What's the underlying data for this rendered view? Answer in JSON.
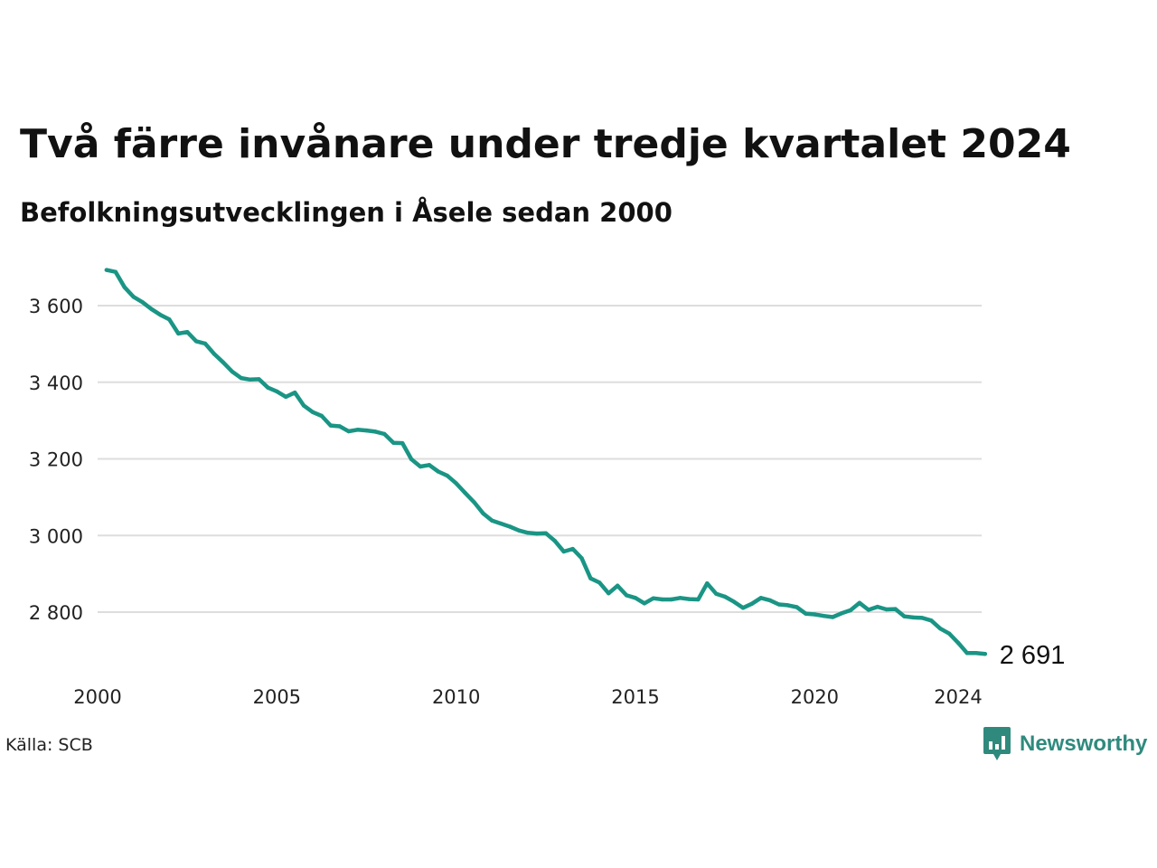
{
  "title": "Två färre invånare under tredje kvartalet 2024",
  "subtitle": "Befolkningsutvecklingen i Åsele sedan 2000",
  "source": "Källa: SCB",
  "brand": {
    "name": "Newsworthy",
    "icon": "newsworthy-logo-icon",
    "color": "#2f8a7d"
  },
  "colors": {
    "line": "#1a9585",
    "grid": "#dddddd"
  },
  "chart_data": {
    "type": "line",
    "title": "Två färre invånare under tredje kvartalet 2024",
    "subtitle": "Befolkningsutvecklingen i Åsele sedan 2000",
    "xlabel": "",
    "ylabel": "",
    "grid": true,
    "xlim": [
      2000.0,
      2024.75
    ],
    "ylim": [
      2660,
      3720
    ],
    "x_ticks": [
      {
        "value": 2000,
        "label": "2000"
      },
      {
        "value": 2005,
        "label": "2005"
      },
      {
        "value": 2010,
        "label": "2010"
      },
      {
        "value": 2015,
        "label": "2015"
      },
      {
        "value": 2020,
        "label": "2020"
      },
      {
        "value": 2024,
        "label": "2024"
      }
    ],
    "y_ticks": [
      {
        "value": 2800,
        "label": "2 800"
      },
      {
        "value": 3000,
        "label": "3 000"
      },
      {
        "value": 3200,
        "label": "3 200"
      },
      {
        "value": 3400,
        "label": "3 400"
      },
      {
        "value": 3600,
        "label": "3 600"
      }
    ],
    "end_label": "2 691",
    "series": [
      {
        "x": [
          2000.25,
          2000.5,
          2000.75,
          2001.0,
          2001.25,
          2001.5,
          2001.75,
          2002.0,
          2002.25,
          2002.5,
          2002.75,
          2003.0,
          2003.25,
          2003.5,
          2003.75,
          2004.0,
          2004.25,
          2004.5,
          2004.75,
          2005.0,
          2005.25,
          2005.5,
          2005.75,
          2006.0,
          2006.25,
          2006.5,
          2006.75,
          2007.0,
          2007.25,
          2007.5,
          2007.75,
          2008.0,
          2008.25,
          2008.5,
          2008.75,
          2009.0,
          2009.25,
          2009.5,
          2009.75,
          2010.0,
          2010.25,
          2010.5,
          2010.75,
          2011.0,
          2011.25,
          2011.5,
          2011.75,
          2012.0,
          2012.25,
          2012.5,
          2012.75,
          2013.0,
          2013.25,
          2013.5,
          2013.75,
          2014.0,
          2014.25,
          2014.5,
          2014.75,
          2015.0,
          2015.25,
          2015.5,
          2015.75,
          2016.0,
          2016.25,
          2016.5,
          2016.75,
          2017.0,
          2017.25,
          2017.5,
          2017.75,
          2018.0,
          2018.25,
          2018.5,
          2018.75,
          2019.0,
          2019.25,
          2019.5,
          2019.75,
          2020.0,
          2020.25,
          2020.5,
          2020.75,
          2021.0,
          2021.25,
          2021.5,
          2021.75,
          2022.0,
          2022.25,
          2022.5,
          2022.75,
          2023.0,
          2023.25,
          2023.5,
          2023.75,
          2024.0,
          2024.25,
          2024.5,
          2024.75
        ],
        "values": [
          3693,
          3688,
          3648,
          3623,
          3609,
          3591,
          3576,
          3564,
          3527,
          3531,
          3507,
          3501,
          3474,
          3452,
          3428,
          3411,
          3407,
          3408,
          3386,
          3376,
          3362,
          3373,
          3339,
          3322,
          3312,
          3287,
          3285,
          3272,
          3276,
          3274,
          3271,
          3265,
          3242,
          3241,
          3199,
          3180,
          3184,
          3167,
          3156,
          3136,
          3111,
          3087,
          3058,
          3039,
          3031,
          3023,
          3013,
          3007,
          3005,
          3006,
          2986,
          2958,
          2965,
          2941,
          2888,
          2877,
          2849,
          2869,
          2844,
          2837,
          2823,
          2836,
          2833,
          2833,
          2837,
          2834,
          2833,
          2875,
          2848,
          2840,
          2827,
          2811,
          2822,
          2837,
          2831,
          2820,
          2818,
          2813,
          2796,
          2794,
          2790,
          2787,
          2797,
          2805,
          2824,
          2806,
          2814,
          2807,
          2808,
          2789,
          2786,
          2785,
          2778,
          2757,
          2744,
          2720,
          2693,
          2693,
          2691
        ]
      }
    ]
  }
}
